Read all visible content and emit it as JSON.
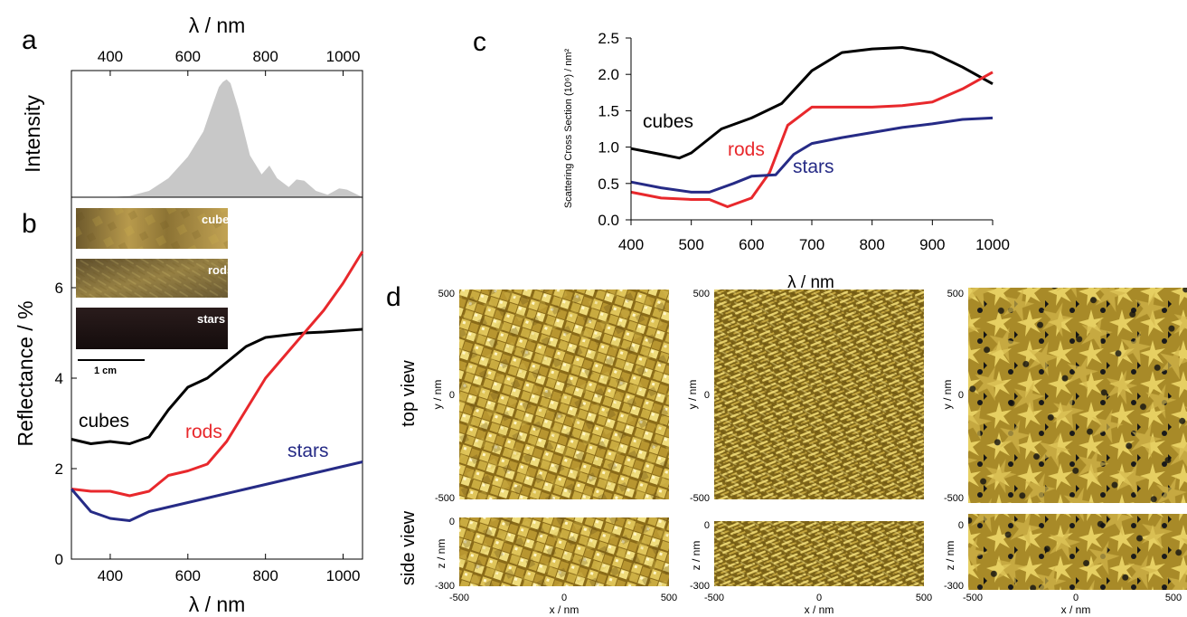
{
  "panel_letters": {
    "a": "a",
    "b": "b",
    "c": "c",
    "d": "d"
  },
  "chart_data": [
    {
      "panel": "a",
      "type": "area",
      "top_xlabel": "λ / nm",
      "ylabel": "Intensity",
      "xlim": [
        300,
        1050
      ],
      "x_ticks": [
        "400",
        "600",
        "800",
        "1000"
      ],
      "color": "#c8c8c8",
      "x": [
        300,
        400,
        450,
        500,
        550,
        600,
        640,
        660,
        680,
        690,
        700,
        710,
        730,
        760,
        790,
        810,
        830,
        860,
        880,
        900,
        930,
        960,
        990,
        1010,
        1030,
        1050
      ],
      "y": [
        0,
        0.0,
        0.01,
        0.05,
        0.15,
        0.32,
        0.52,
        0.7,
        0.87,
        0.91,
        0.93,
        0.9,
        0.7,
        0.33,
        0.18,
        0.25,
        0.15,
        0.08,
        0.14,
        0.13,
        0.05,
        0.02,
        0.07,
        0.06,
        0.03,
        0.0
      ]
    },
    {
      "panel": "b",
      "type": "line",
      "xlabel": "λ / nm",
      "ylabel": "Reflectance / %",
      "xlim": [
        300,
        1050
      ],
      "ylim": [
        0,
        8
      ],
      "x_ticks": [
        "400",
        "600",
        "800",
        "1000"
      ],
      "y_ticks": [
        "0",
        "2",
        "4",
        "6"
      ],
      "series": [
        {
          "name": "cubes",
          "color": "#000000",
          "x": [
            300,
            350,
            400,
            450,
            500,
            550,
            600,
            650,
            700,
            750,
            800,
            850,
            900,
            950,
            1000,
            1050
          ],
          "y": [
            2.65,
            2.55,
            2.6,
            2.55,
            2.7,
            3.3,
            3.8,
            4.0,
            4.35,
            4.7,
            4.9,
            4.95,
            5.0,
            5.02,
            5.05,
            5.08
          ]
        },
        {
          "name": "rods",
          "color": "#e8282c",
          "x": [
            300,
            350,
            400,
            450,
            500,
            550,
            600,
            650,
            700,
            750,
            800,
            850,
            900,
            950,
            1000,
            1050
          ],
          "y": [
            1.55,
            1.5,
            1.5,
            1.4,
            1.5,
            1.85,
            1.95,
            2.1,
            2.6,
            3.3,
            4.0,
            4.5,
            5.0,
            5.5,
            6.1,
            6.8
          ]
        },
        {
          "name": "stars",
          "color": "#262b86",
          "x": [
            300,
            350,
            400,
            450,
            500,
            550,
            600,
            650,
            700,
            750,
            800,
            850,
            900,
            950,
            1000,
            1050
          ],
          "y": [
            1.55,
            1.05,
            0.9,
            0.85,
            1.05,
            1.15,
            1.25,
            1.35,
            1.45,
            1.55,
            1.65,
            1.75,
            1.85,
            1.95,
            2.05,
            2.15
          ]
        }
      ],
      "inset_labels": [
        "cubes",
        "rods",
        "stars"
      ],
      "scale_bar": "1 cm"
    },
    {
      "panel": "c",
      "type": "line",
      "xlabel": "λ / nm",
      "ylabel": "Scattering Cross Section (10⁶) / nm²",
      "xlim": [
        400,
        1000
      ],
      "ylim": [
        0,
        2.5
      ],
      "x_ticks": [
        "400",
        "500",
        "600",
        "700",
        "800",
        "900",
        "1000"
      ],
      "y_ticks": [
        "0.0",
        "0.5",
        "1.0",
        "1.5",
        "2.0",
        "2.5"
      ],
      "series": [
        {
          "name": "cubes",
          "color": "#000000",
          "x": [
            400,
            450,
            480,
            500,
            550,
            600,
            650,
            700,
            750,
            800,
            850,
            900,
            950,
            1000
          ],
          "y": [
            0.98,
            0.9,
            0.85,
            0.92,
            1.25,
            1.4,
            1.6,
            2.05,
            2.3,
            2.35,
            2.37,
            2.3,
            2.1,
            1.87
          ]
        },
        {
          "name": "rods",
          "color": "#e8282c",
          "x": [
            400,
            450,
            500,
            530,
            560,
            600,
            630,
            660,
            700,
            750,
            800,
            850,
            900,
            950,
            1000
          ],
          "y": [
            0.38,
            0.3,
            0.28,
            0.28,
            0.18,
            0.3,
            0.65,
            1.3,
            1.55,
            1.55,
            1.55,
            1.57,
            1.62,
            1.8,
            2.03
          ]
        },
        {
          "name": "stars",
          "color": "#262b86",
          "x": [
            400,
            450,
            500,
            530,
            570,
            600,
            640,
            670,
            700,
            750,
            800,
            850,
            900,
            950,
            1000
          ],
          "y": [
            0.52,
            0.44,
            0.38,
            0.38,
            0.5,
            0.6,
            0.62,
            0.9,
            1.05,
            1.13,
            1.2,
            1.27,
            1.32,
            1.38,
            1.4
          ]
        }
      ]
    }
  ],
  "simulation": {
    "top_view_label": "top view",
    "side_view_label": "side view",
    "top_y_label": "y / nm",
    "side_y_label": "z / nm",
    "x_label": "x / nm",
    "top_y_ticks": [
      "500",
      "0",
      "-500"
    ],
    "side_y_ticks": [
      "0",
      "-300"
    ],
    "x_ticks": [
      "-500",
      "0",
      "500"
    ],
    "colors": {
      "gold": "#b8962a",
      "gold_light": "#e3cd63",
      "gold_dark": "#6b5212"
    }
  }
}
